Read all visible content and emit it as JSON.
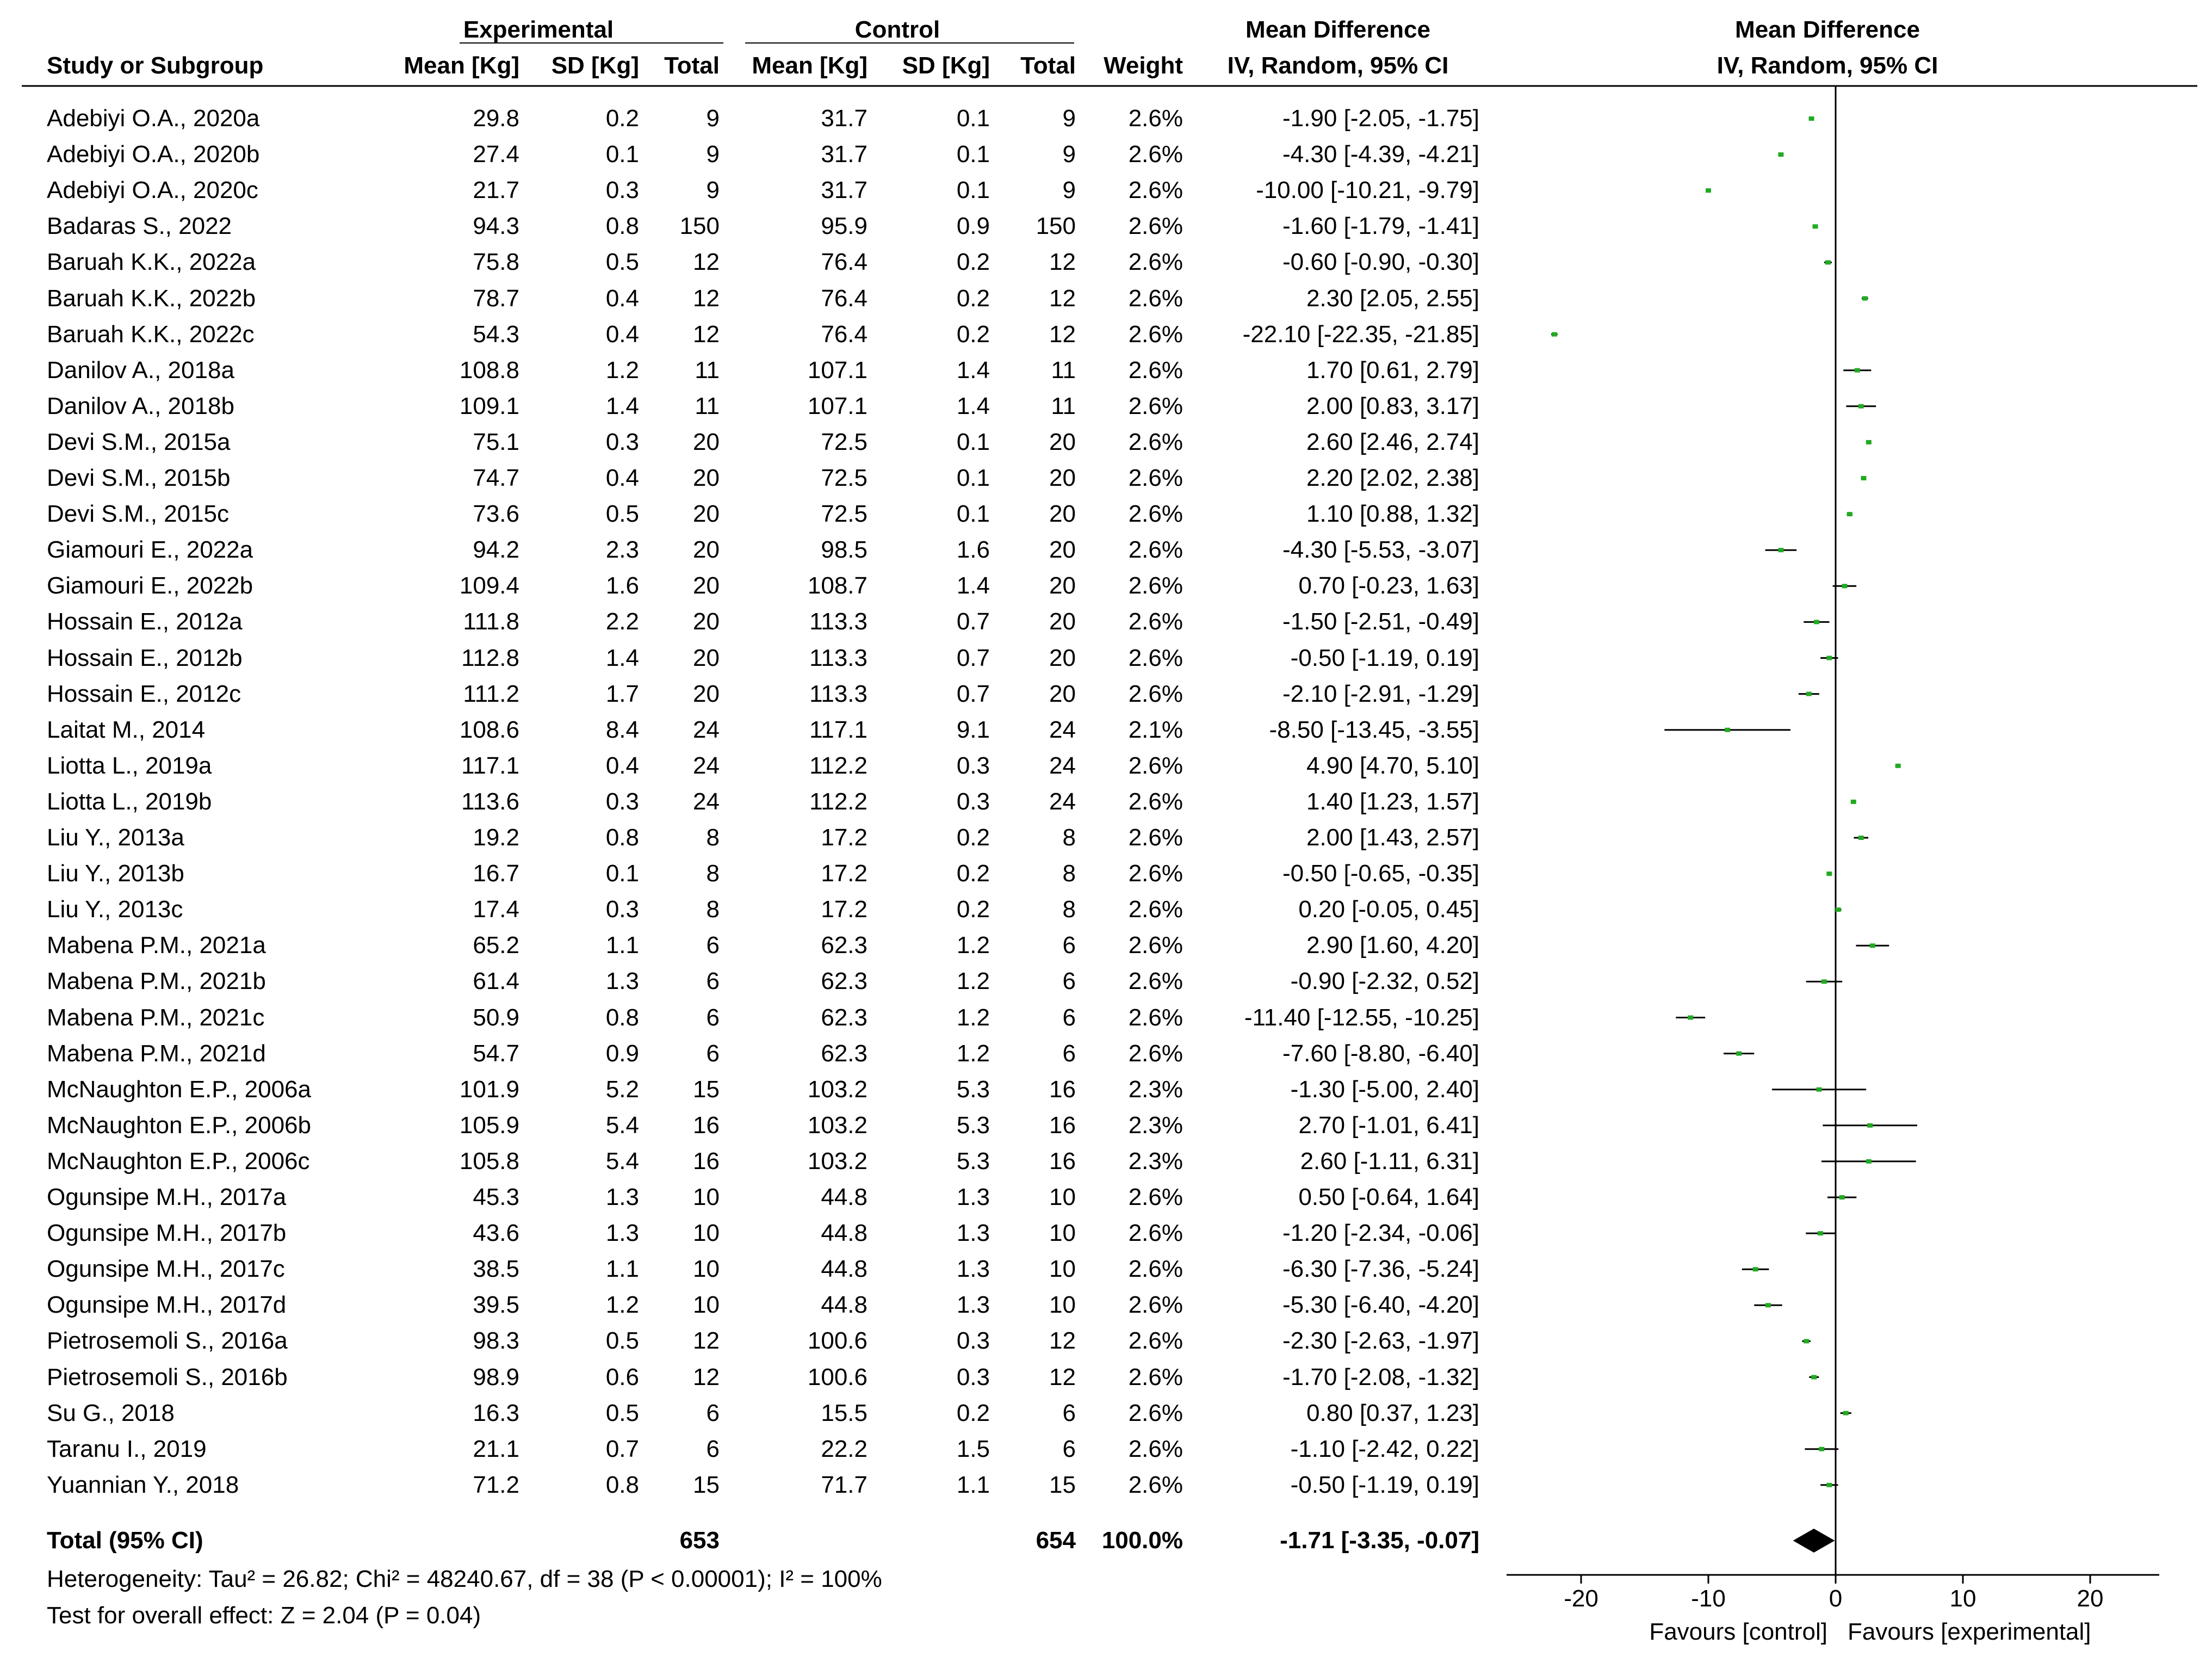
{
  "chart_data": {
    "type": "forest",
    "headers": {
      "group_experimental": "Experimental",
      "group_control": "Control",
      "study_col": "Study or Subgroup",
      "mean_col": "Mean [Kg]",
      "sd_col": "SD [Kg]",
      "total_col": "Total",
      "mean_col_ctrl": "Mean [Kg]",
      "sd_col_ctrl": "SD [Kg]",
      "total_col_ctrl": "Total",
      "weight_col": "Weight",
      "md_title": "Mean Difference",
      "md_method": "IV, Random, 95% CI",
      "plot_title": "Mean Difference",
      "plot_method": "IV, Random, 95% CI"
    },
    "studies": [
      {
        "name": "Adebiyi O.A., 2020a",
        "e_mean": "29.8",
        "e_sd": "0.2",
        "e_total": "9",
        "c_mean": "31.7",
        "c_sd": "0.1",
        "c_total": "9",
        "weight": "2.6%",
        "ci_text": "-1.90 [-2.05, -1.75]",
        "md": -1.9,
        "lo": -2.05,
        "hi": -1.75
      },
      {
        "name": "Adebiyi O.A., 2020b",
        "e_mean": "27.4",
        "e_sd": "0.1",
        "e_total": "9",
        "c_mean": "31.7",
        "c_sd": "0.1",
        "c_total": "9",
        "weight": "2.6%",
        "ci_text": "-4.30 [-4.39, -4.21]",
        "md": -4.3,
        "lo": -4.39,
        "hi": -4.21
      },
      {
        "name": "Adebiyi O.A., 2020c",
        "e_mean": "21.7",
        "e_sd": "0.3",
        "e_total": "9",
        "c_mean": "31.7",
        "c_sd": "0.1",
        "c_total": "9",
        "weight": "2.6%",
        "ci_text": "-10.00 [-10.21, -9.79]",
        "md": -10.0,
        "lo": -10.21,
        "hi": -9.79
      },
      {
        "name": "Badaras S., 2022",
        "e_mean": "94.3",
        "e_sd": "0.8",
        "e_total": "150",
        "c_mean": "95.9",
        "c_sd": "0.9",
        "c_total": "150",
        "weight": "2.6%",
        "ci_text": "-1.60 [-1.79, -1.41]",
        "md": -1.6,
        "lo": -1.79,
        "hi": -1.41
      },
      {
        "name": "Baruah K.K., 2022a",
        "e_mean": "75.8",
        "e_sd": "0.5",
        "e_total": "12",
        "c_mean": "76.4",
        "c_sd": "0.2",
        "c_total": "12",
        "weight": "2.6%",
        "ci_text": "-0.60 [-0.90, -0.30]",
        "md": -0.6,
        "lo": -0.9,
        "hi": -0.3
      },
      {
        "name": "Baruah K.K., 2022b",
        "e_mean": "78.7",
        "e_sd": "0.4",
        "e_total": "12",
        "c_mean": "76.4",
        "c_sd": "0.2",
        "c_total": "12",
        "weight": "2.6%",
        "ci_text": "2.30 [2.05, 2.55]",
        "md": 2.3,
        "lo": 2.05,
        "hi": 2.55
      },
      {
        "name": "Baruah K.K., 2022c",
        "e_mean": "54.3",
        "e_sd": "0.4",
        "e_total": "12",
        "c_mean": "76.4",
        "c_sd": "0.2",
        "c_total": "12",
        "weight": "2.6%",
        "ci_text": "-22.10 [-22.35, -21.85]",
        "md": -22.1,
        "lo": -22.35,
        "hi": -21.85
      },
      {
        "name": "Danilov A., 2018a",
        "e_mean": "108.8",
        "e_sd": "1.2",
        "e_total": "11",
        "c_mean": "107.1",
        "c_sd": "1.4",
        "c_total": "11",
        "weight": "2.6%",
        "ci_text": "1.70 [0.61, 2.79]",
        "md": 1.7,
        "lo": 0.61,
        "hi": 2.79
      },
      {
        "name": "Danilov A., 2018b",
        "e_mean": "109.1",
        "e_sd": "1.4",
        "e_total": "11",
        "c_mean": "107.1",
        "c_sd": "1.4",
        "c_total": "11",
        "weight": "2.6%",
        "ci_text": "2.00 [0.83, 3.17]",
        "md": 2.0,
        "lo": 0.83,
        "hi": 3.17
      },
      {
        "name": "Devi S.M., 2015a",
        "e_mean": "75.1",
        "e_sd": "0.3",
        "e_total": "20",
        "c_mean": "72.5",
        "c_sd": "0.1",
        "c_total": "20",
        "weight": "2.6%",
        "ci_text": "2.60 [2.46, 2.74]",
        "md": 2.6,
        "lo": 2.46,
        "hi": 2.74
      },
      {
        "name": "Devi S.M., 2015b",
        "e_mean": "74.7",
        "e_sd": "0.4",
        "e_total": "20",
        "c_mean": "72.5",
        "c_sd": "0.1",
        "c_total": "20",
        "weight": "2.6%",
        "ci_text": "2.20 [2.02, 2.38]",
        "md": 2.2,
        "lo": 2.02,
        "hi": 2.38
      },
      {
        "name": "Devi S.M., 2015c",
        "e_mean": "73.6",
        "e_sd": "0.5",
        "e_total": "20",
        "c_mean": "72.5",
        "c_sd": "0.1",
        "c_total": "20",
        "weight": "2.6%",
        "ci_text": "1.10 [0.88, 1.32]",
        "md": 1.1,
        "lo": 0.88,
        "hi": 1.32
      },
      {
        "name": "Giamouri E., 2022a",
        "e_mean": "94.2",
        "e_sd": "2.3",
        "e_total": "20",
        "c_mean": "98.5",
        "c_sd": "1.6",
        "c_total": "20",
        "weight": "2.6%",
        "ci_text": "-4.30 [-5.53, -3.07]",
        "md": -4.3,
        "lo": -5.53,
        "hi": -3.07
      },
      {
        "name": "Giamouri E., 2022b",
        "e_mean": "109.4",
        "e_sd": "1.6",
        "e_total": "20",
        "c_mean": "108.7",
        "c_sd": "1.4",
        "c_total": "20",
        "weight": "2.6%",
        "ci_text": "0.70 [-0.23, 1.63]",
        "md": 0.7,
        "lo": -0.23,
        "hi": 1.63
      },
      {
        "name": "Hossain E., 2012a",
        "e_mean": "111.8",
        "e_sd": "2.2",
        "e_total": "20",
        "c_mean": "113.3",
        "c_sd": "0.7",
        "c_total": "20",
        "weight": "2.6%",
        "ci_text": "-1.50 [-2.51, -0.49]",
        "md": -1.5,
        "lo": -2.51,
        "hi": -0.49
      },
      {
        "name": "Hossain E., 2012b",
        "e_mean": "112.8",
        "e_sd": "1.4",
        "e_total": "20",
        "c_mean": "113.3",
        "c_sd": "0.7",
        "c_total": "20",
        "weight": "2.6%",
        "ci_text": "-0.50 [-1.19, 0.19]",
        "md": -0.5,
        "lo": -1.19,
        "hi": 0.19
      },
      {
        "name": "Hossain E., 2012c",
        "e_mean": "111.2",
        "e_sd": "1.7",
        "e_total": "20",
        "c_mean": "113.3",
        "c_sd": "0.7",
        "c_total": "20",
        "weight": "2.6%",
        "ci_text": "-2.10 [-2.91, -1.29]",
        "md": -2.1,
        "lo": -2.91,
        "hi": -1.29
      },
      {
        "name": "Laitat M., 2014",
        "e_mean": "108.6",
        "e_sd": "8.4",
        "e_total": "24",
        "c_mean": "117.1",
        "c_sd": "9.1",
        "c_total": "24",
        "weight": "2.1%",
        "ci_text": "-8.50 [-13.45, -3.55]",
        "md": -8.5,
        "lo": -13.45,
        "hi": -3.55
      },
      {
        "name": "Liotta L., 2019a",
        "e_mean": "117.1",
        "e_sd": "0.4",
        "e_total": "24",
        "c_mean": "112.2",
        "c_sd": "0.3",
        "c_total": "24",
        "weight": "2.6%",
        "ci_text": "4.90 [4.70, 5.10]",
        "md": 4.9,
        "lo": 4.7,
        "hi": 5.1
      },
      {
        "name": "Liotta L., 2019b",
        "e_mean": "113.6",
        "e_sd": "0.3",
        "e_total": "24",
        "c_mean": "112.2",
        "c_sd": "0.3",
        "c_total": "24",
        "weight": "2.6%",
        "ci_text": "1.40 [1.23, 1.57]",
        "md": 1.4,
        "lo": 1.23,
        "hi": 1.57
      },
      {
        "name": "Liu Y., 2013a",
        "e_mean": "19.2",
        "e_sd": "0.8",
        "e_total": "8",
        "c_mean": "17.2",
        "c_sd": "0.2",
        "c_total": "8",
        "weight": "2.6%",
        "ci_text": "2.00 [1.43, 2.57]",
        "md": 2.0,
        "lo": 1.43,
        "hi": 2.57
      },
      {
        "name": "Liu Y., 2013b",
        "e_mean": "16.7",
        "e_sd": "0.1",
        "e_total": "8",
        "c_mean": "17.2",
        "c_sd": "0.2",
        "c_total": "8",
        "weight": "2.6%",
        "ci_text": "-0.50 [-0.65, -0.35]",
        "md": -0.5,
        "lo": -0.65,
        "hi": -0.35
      },
      {
        "name": "Liu Y., 2013c",
        "e_mean": "17.4",
        "e_sd": "0.3",
        "e_total": "8",
        "c_mean": "17.2",
        "c_sd": "0.2",
        "c_total": "8",
        "weight": "2.6%",
        "ci_text": "0.20 [-0.05, 0.45]",
        "md": 0.2,
        "lo": -0.05,
        "hi": 0.45
      },
      {
        "name": "Mabena P.M., 2021a",
        "e_mean": "65.2",
        "e_sd": "1.1",
        "e_total": "6",
        "c_mean": "62.3",
        "c_sd": "1.2",
        "c_total": "6",
        "weight": "2.6%",
        "ci_text": "2.90 [1.60, 4.20]",
        "md": 2.9,
        "lo": 1.6,
        "hi": 4.2
      },
      {
        "name": "Mabena P.M., 2021b",
        "e_mean": "61.4",
        "e_sd": "1.3",
        "e_total": "6",
        "c_mean": "62.3",
        "c_sd": "1.2",
        "c_total": "6",
        "weight": "2.6%",
        "ci_text": "-0.90 [-2.32, 0.52]",
        "md": -0.9,
        "lo": -2.32,
        "hi": 0.52
      },
      {
        "name": "Mabena P.M., 2021c",
        "e_mean": "50.9",
        "e_sd": "0.8",
        "e_total": "6",
        "c_mean": "62.3",
        "c_sd": "1.2",
        "c_total": "6",
        "weight": "2.6%",
        "ci_text": "-11.40 [-12.55, -10.25]",
        "md": -11.4,
        "lo": -12.55,
        "hi": -10.25
      },
      {
        "name": "Mabena P.M., 2021d",
        "e_mean": "54.7",
        "e_sd": "0.9",
        "e_total": "6",
        "c_mean": "62.3",
        "c_sd": "1.2",
        "c_total": "6",
        "weight": "2.6%",
        "ci_text": "-7.60 [-8.80, -6.40]",
        "md": -7.6,
        "lo": -8.8,
        "hi": -6.4
      },
      {
        "name": "McNaughton E.P., 2006a",
        "e_mean": "101.9",
        "e_sd": "5.2",
        "e_total": "15",
        "c_mean": "103.2",
        "c_sd": "5.3",
        "c_total": "16",
        "weight": "2.3%",
        "ci_text": "-1.30 [-5.00, 2.40]",
        "md": -1.3,
        "lo": -5.0,
        "hi": 2.4
      },
      {
        "name": "McNaughton E.P., 2006b",
        "e_mean": "105.9",
        "e_sd": "5.4",
        "e_total": "16",
        "c_mean": "103.2",
        "c_sd": "5.3",
        "c_total": "16",
        "weight": "2.3%",
        "ci_text": "2.70 [-1.01, 6.41]",
        "md": 2.7,
        "lo": -1.01,
        "hi": 6.41
      },
      {
        "name": "McNaughton E.P., 2006c",
        "e_mean": "105.8",
        "e_sd": "5.4",
        "e_total": "16",
        "c_mean": "103.2",
        "c_sd": "5.3",
        "c_total": "16",
        "weight": "2.3%",
        "ci_text": "2.60 [-1.11, 6.31]",
        "md": 2.6,
        "lo": -1.11,
        "hi": 6.31
      },
      {
        "name": "Ogunsipe M.H., 2017a",
        "e_mean": "45.3",
        "e_sd": "1.3",
        "e_total": "10",
        "c_mean": "44.8",
        "c_sd": "1.3",
        "c_total": "10",
        "weight": "2.6%",
        "ci_text": "0.50 [-0.64, 1.64]",
        "md": 0.5,
        "lo": -0.64,
        "hi": 1.64
      },
      {
        "name": "Ogunsipe M.H., 2017b",
        "e_mean": "43.6",
        "e_sd": "1.3",
        "e_total": "10",
        "c_mean": "44.8",
        "c_sd": "1.3",
        "c_total": "10",
        "weight": "2.6%",
        "ci_text": "-1.20 [-2.34, -0.06]",
        "md": -1.2,
        "lo": -2.34,
        "hi": -0.06
      },
      {
        "name": "Ogunsipe M.H., 2017c",
        "e_mean": "38.5",
        "e_sd": "1.1",
        "e_total": "10",
        "c_mean": "44.8",
        "c_sd": "1.3",
        "c_total": "10",
        "weight": "2.6%",
        "ci_text": "-6.30 [-7.36, -5.24]",
        "md": -6.3,
        "lo": -7.36,
        "hi": -5.24
      },
      {
        "name": "Ogunsipe M.H., 2017d",
        "e_mean": "39.5",
        "e_sd": "1.2",
        "e_total": "10",
        "c_mean": "44.8",
        "c_sd": "1.3",
        "c_total": "10",
        "weight": "2.6%",
        "ci_text": "-5.30 [-6.40, -4.20]",
        "md": -5.3,
        "lo": -6.4,
        "hi": -4.2
      },
      {
        "name": "Pietrosemoli S., 2016a",
        "e_mean": "98.3",
        "e_sd": "0.5",
        "e_total": "12",
        "c_mean": "100.6",
        "c_sd": "0.3",
        "c_total": "12",
        "weight": "2.6%",
        "ci_text": "-2.30 [-2.63, -1.97]",
        "md": -2.3,
        "lo": -2.63,
        "hi": -1.97
      },
      {
        "name": "Pietrosemoli S., 2016b",
        "e_mean": "98.9",
        "e_sd": "0.6",
        "e_total": "12",
        "c_mean": "100.6",
        "c_sd": "0.3",
        "c_total": "12",
        "weight": "2.6%",
        "ci_text": "-1.70 [-2.08, -1.32]",
        "md": -1.7,
        "lo": -2.08,
        "hi": -1.32
      },
      {
        "name": "Su G., 2018",
        "e_mean": "16.3",
        "e_sd": "0.5",
        "e_total": "6",
        "c_mean": "15.5",
        "c_sd": "0.2",
        "c_total": "6",
        "weight": "2.6%",
        "ci_text": "0.80 [0.37, 1.23]",
        "md": 0.8,
        "lo": 0.37,
        "hi": 1.23
      },
      {
        "name": "Taranu I., 2019",
        "e_mean": "21.1",
        "e_sd": "0.7",
        "e_total": "6",
        "c_mean": "22.2",
        "c_sd": "1.5",
        "c_total": "6",
        "weight": "2.6%",
        "ci_text": "-1.10 [-2.42, 0.22]",
        "md": -1.1,
        "lo": -2.42,
        "hi": 0.22
      },
      {
        "name": "Yuannian Y., 2018",
        "e_mean": "71.2",
        "e_sd": "0.8",
        "e_total": "15",
        "c_mean": "71.7",
        "c_sd": "1.1",
        "c_total": "15",
        "weight": "2.6%",
        "ci_text": "-0.50 [-1.19, 0.19]",
        "md": -0.5,
        "lo": -1.19,
        "hi": 0.19
      }
    ],
    "total": {
      "label": "Total (95% CI)",
      "e_total": "653",
      "c_total": "654",
      "weight": "100.0%",
      "ci_text": "-1.71 [-3.35, -0.07]",
      "md": -1.71,
      "lo": -3.35,
      "hi": -0.07
    },
    "heterogeneity": "Heterogeneity: Tau² = 26.82; Chi² = 48240.67, df = 38 (P < 0.00001); I² = 100%",
    "overall_effect": "Test for overall effect: Z = 2.04 (P = 0.04)",
    "x_axis": {
      "min": -25,
      "max": 25,
      "ticks": [
        -20,
        -10,
        0,
        10,
        20
      ],
      "tick_labels": [
        "-20",
        "-10",
        "0",
        "10",
        "20"
      ],
      "label_left": "Favours [control]",
      "label_right": "Favours [experimental]"
    },
    "colors": {
      "point": "#22aa22",
      "line": "#000000",
      "diamond": "#000000"
    }
  }
}
